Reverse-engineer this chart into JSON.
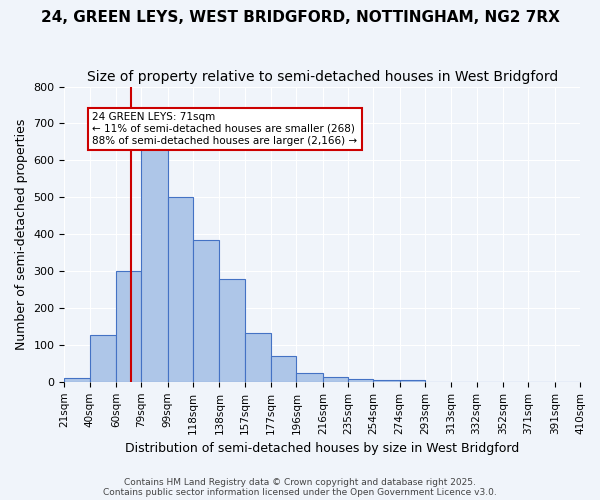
{
  "title": "24, GREEN LEYS, WEST BRIDGFORD, NOTTINGHAM, NG2 7RX",
  "subtitle": "Size of property relative to semi-detached houses in West Bridgford",
  "xlabel": "Distribution of semi-detached houses by size in West Bridgford",
  "ylabel": "Number of semi-detached properties",
  "footer1": "Contains HM Land Registry data © Crown copyright and database right 2025.",
  "footer2": "Contains public sector information licensed under the Open Government Licence v3.0.",
  "bin_labels": [
    "21sqm",
    "40sqm",
    "60sqm",
    "79sqm",
    "99sqm",
    "118sqm",
    "138sqm",
    "157sqm",
    "177sqm",
    "196sqm",
    "216sqm",
    "235sqm",
    "254sqm",
    "274sqm",
    "293sqm",
    "313sqm",
    "332sqm",
    "352sqm",
    "371sqm",
    "391sqm",
    "410sqm"
  ],
  "bin_edges": [
    21,
    40,
    60,
    79,
    99,
    118,
    138,
    157,
    177,
    196,
    216,
    235,
    254,
    274,
    293,
    313,
    332,
    352,
    371,
    391,
    410
  ],
  "bar_values": [
    10,
    128,
    300,
    635,
    500,
    383,
    278,
    133,
    70,
    25,
    12,
    8,
    5,
    5,
    0,
    0,
    0,
    0,
    0,
    0
  ],
  "bar_color": "#aec6e8",
  "bar_edge_color": "#4472c4",
  "property_size": 71,
  "red_line_color": "#cc0000",
  "annotation_title": "24 GREEN LEYS: 71sqm",
  "annotation_line1": "← 11% of semi-detached houses are smaller (268)",
  "annotation_line2": "88% of semi-detached houses are larger (2,166) →",
  "annotation_box_color": "#ffffff",
  "annotation_border_color": "#cc0000",
  "ylim": [
    0,
    800
  ],
  "yticks": [
    0,
    100,
    200,
    300,
    400,
    500,
    600,
    700,
    800
  ],
  "bg_color": "#f0f4fa",
  "grid_color": "#ffffff",
  "title_fontsize": 11,
  "subtitle_fontsize": 10
}
